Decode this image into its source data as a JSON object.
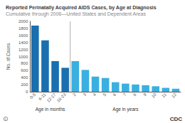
{
  "chart_data": {
    "type": "bar",
    "title": "Reported Perinatally Acquired AIDS Cases, by Age at Diagnosis",
    "subtitle": "Cumulative through 2006—United States and Dependent Areas",
    "ylabel": "No. of Cases",
    "categories": [
      "0-5",
      "6-11",
      "12-17",
      "18-23",
      "2",
      "3",
      "4",
      "5",
      "6",
      "7",
      "8",
      "9",
      "10",
      "11",
      "12"
    ],
    "values": [
      1880,
      1460,
      870,
      680,
      870,
      620,
      430,
      390,
      270,
      230,
      205,
      185,
      155,
      110,
      85
    ],
    "colors": [
      "#1a6faf",
      "#1a6faf",
      "#1a6faf",
      "#1a6faf",
      "#3ab0e0",
      "#3ab0e0",
      "#3ab0e0",
      "#3ab0e0",
      "#3ab0e0",
      "#3ab0e0",
      "#3ab0e0",
      "#3ab0e0",
      "#3ab0e0",
      "#3ab0e0",
      "#3ab0e0"
    ],
    "annotations": [
      "Age in months",
      "Age in years",
      "CDC",
      "⊙"
    ],
    "ylim": [
      0,
      2000
    ],
    "yticks": [
      0,
      200,
      400,
      600,
      800,
      1000,
      1200,
      1400,
      1600,
      1800,
      2000
    ],
    "grid": false
  }
}
